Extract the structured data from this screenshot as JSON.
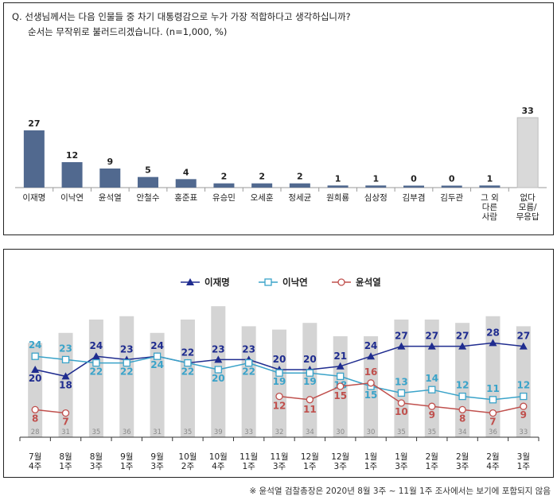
{
  "question": {
    "line1": "Q. 선생님께서는 다음 인물들 중 차기 대통령감으로 누가 가장 적합하다고 생각하십니까?",
    "line2": "순서는 무작위로 불러드리겠습니다. (n=1,000, %)"
  },
  "footnote": "※ 윤석열 검찰총장은 2020년 8월 3주 ~ 11월 1주 조사에서는 보기에 포함되지 않음",
  "colors": {
    "bar_blue": "#51698f",
    "bar_gray": "#d9d9d9",
    "lee_jm": "#1f2c8f",
    "lee_ny": "#3aa3c9",
    "yoon": "#c0504d",
    "base_bar": "#d4d4d4"
  },
  "chart_data": [
    {
      "type": "bar",
      "categories": [
        "이재명",
        "이낙연",
        "윤석열",
        "안철수",
        "홍준표",
        "유승민",
        "오세훈",
        "정세균",
        "원희룡",
        "심상정",
        "김부겸",
        "김두관",
        "그 외 다른 사람",
        "없다 모름/ 무응답"
      ],
      "category_lines": [
        [
          "이재명"
        ],
        [
          "이낙연"
        ],
        [
          "윤석열"
        ],
        [
          "안철수"
        ],
        [
          "홍준표"
        ],
        [
          "유승민"
        ],
        [
          "오세훈"
        ],
        [
          "정세균"
        ],
        [
          "원희룡"
        ],
        [
          "심상정"
        ],
        [
          "김부겸"
        ],
        [
          "김두관"
        ],
        [
          "그 외",
          "다른",
          "사람"
        ],
        [
          "없다",
          "모름/",
          "무응답"
        ]
      ],
      "values": [
        27,
        12,
        9,
        5,
        4,
        2,
        2,
        2,
        1,
        1,
        0,
        0,
        1,
        33
      ],
      "highlight_last": true
    },
    {
      "type": "line",
      "categories": [
        "7월 4주",
        "8월 1주",
        "8월 3주",
        "9월 1주",
        "9월 3주",
        "10월 2주",
        "10월 4주",
        "11월 1주",
        "11월 3주",
        "12월 1주",
        "12월 3주",
        "1월 1주",
        "1월 3주",
        "2월 1주",
        "2월 3주",
        "2월 4주",
        "3월 1주"
      ],
      "category_lines": [
        [
          "7월",
          "4주"
        ],
        [
          "8월",
          "1주"
        ],
        [
          "8월",
          "3주"
        ],
        [
          "9월",
          "1주"
        ],
        [
          "9월",
          "3주"
        ],
        [
          "10월",
          "2주"
        ],
        [
          "10월",
          "4주"
        ],
        [
          "11월",
          "1주"
        ],
        [
          "11월",
          "3주"
        ],
        [
          "12월",
          "1주"
        ],
        [
          "12월",
          "3주"
        ],
        [
          "1월",
          "1주"
        ],
        [
          "1월",
          "3주"
        ],
        [
          "2월",
          "1주"
        ],
        [
          "2월",
          "3주"
        ],
        [
          "2월",
          "4주"
        ],
        [
          "3월",
          "1주"
        ]
      ],
      "legend_position": "top-center",
      "series": [
        {
          "name": "이재명",
          "marker": "triangle",
          "values": [
            20,
            18,
            24,
            23,
            24,
            22,
            23,
            23,
            20,
            20,
            21,
            24,
            27,
            27,
            27,
            28,
            27
          ]
        },
        {
          "name": "이낙연",
          "marker": "square",
          "values": [
            24,
            23,
            22,
            22,
            24,
            22,
            20,
            22,
            19,
            19,
            18,
            15,
            13,
            14,
            12,
            11,
            12
          ]
        },
        {
          "name": "윤석열",
          "marker": "circle",
          "values": [
            8,
            7,
            null,
            null,
            null,
            null,
            null,
            null,
            12,
            11,
            15,
            16,
            10,
            9,
            8,
            7,
            9
          ]
        }
      ],
      "base_values": [
        28,
        31,
        35,
        36,
        31,
        35,
        39,
        33,
        32,
        34,
        30,
        30,
        35,
        35,
        34,
        36,
        33
      ]
    }
  ]
}
